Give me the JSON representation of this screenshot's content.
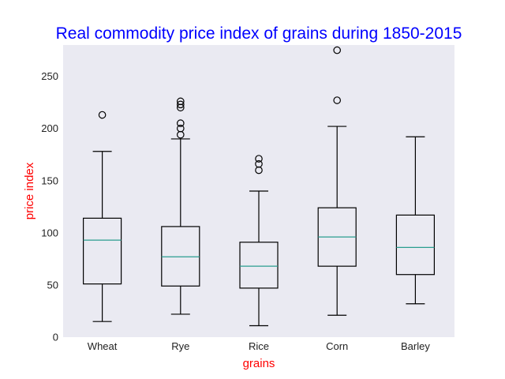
{
  "chart_data": {
    "type": "box",
    "title": "Real commodity price index of grains during 1850-2015",
    "xlabel": "grains",
    "ylabel": "price index",
    "ylim": [
      0,
      280
    ],
    "yticks": [
      0,
      50,
      100,
      150,
      200,
      250
    ],
    "grid": false,
    "categories": [
      "Wheat",
      "Rye",
      "Rice",
      "Corn",
      "Barley"
    ],
    "boxes": [
      {
        "name": "Wheat",
        "whisker_low": 15,
        "q1": 51,
        "median": 93,
        "q3": 114,
        "whisker_high": 178,
        "outliers": [
          213
        ]
      },
      {
        "name": "Rye",
        "whisker_low": 22,
        "q1": 49,
        "median": 77,
        "q3": 106,
        "whisker_high": 190,
        "outliers": [
          194,
          200,
          205,
          220,
          223,
          226
        ]
      },
      {
        "name": "Rice",
        "whisker_low": 11,
        "q1": 47,
        "median": 68,
        "q3": 91,
        "whisker_high": 140,
        "outliers": [
          160,
          166,
          171
        ]
      },
      {
        "name": "Corn",
        "whisker_low": 21,
        "q1": 68,
        "median": 96,
        "q3": 124,
        "whisker_high": 202,
        "outliers": [
          227,
          275
        ]
      },
      {
        "name": "Barley",
        "whisker_low": 32,
        "q1": 60,
        "median": 86,
        "q3": 117,
        "whisker_high": 192,
        "outliers": []
      }
    ],
    "colors": {
      "plot_background": "#eaeaf2",
      "box_line": "#000000",
      "median_line": "#2a9d8f",
      "title": "#0000ff",
      "axis_label": "#ff0000"
    }
  }
}
